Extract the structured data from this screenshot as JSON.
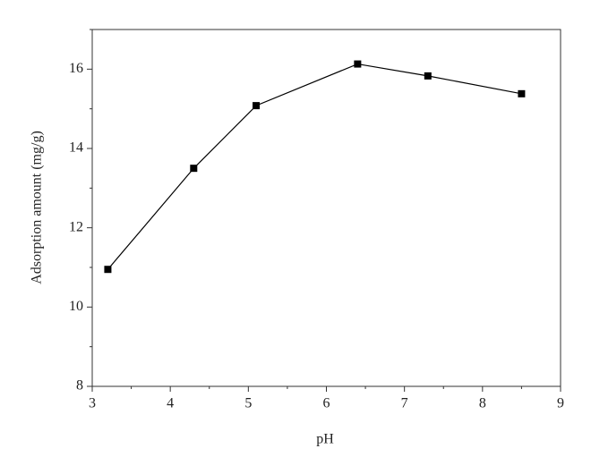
{
  "chart_data": {
    "type": "line",
    "x_label": "pH",
    "y_label": "Adsorption amount (mg/g)",
    "series": [
      {
        "name": "Adsorption",
        "color": "#000000",
        "x": [
          3.2,
          4.3,
          5.1,
          6.4,
          7.3,
          8.5
        ],
        "values": [
          10.95,
          13.5,
          15.08,
          16.13,
          15.83,
          15.38
        ]
      }
    ],
    "xlim": [
      3,
      9
    ],
    "xticks": [
      3,
      4,
      5,
      6,
      7,
      8,
      9
    ],
    "xminorticks": [
      3.5,
      4.5,
      5.5,
      6.5,
      7.5,
      8.5
    ],
    "ylim": [
      8,
      17
    ],
    "yticks": [
      8,
      10,
      12,
      14,
      16
    ],
    "yminorticks": [
      9,
      11,
      13,
      15,
      17
    ],
    "marker": "square",
    "grid": false
  }
}
